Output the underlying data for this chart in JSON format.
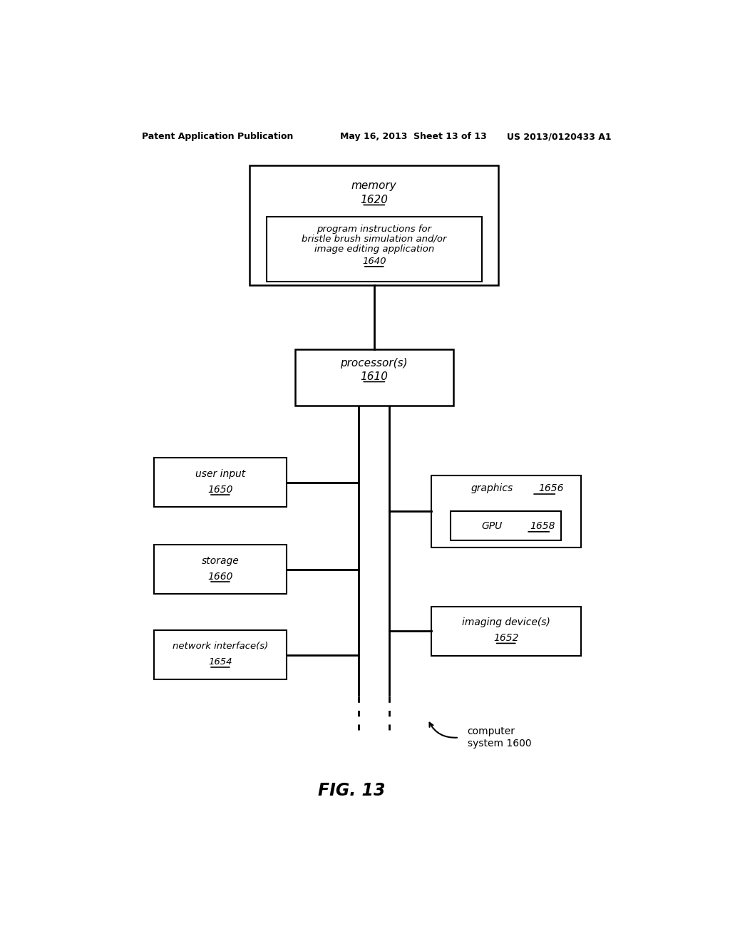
{
  "title_header": "Patent Application Publication",
  "title_date": "May 16, 2013  Sheet 13 of 13",
  "title_patent": "US 2013/0120433 A1",
  "fig_label": "FIG. 13",
  "bg_color": "#ffffff"
}
